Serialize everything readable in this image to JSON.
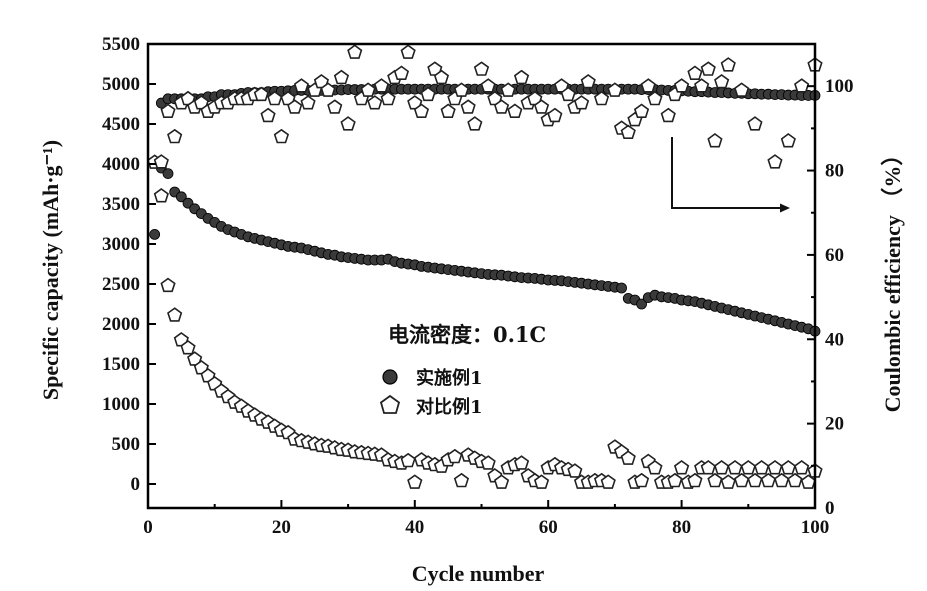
{
  "chart_data": {
    "type": "scatter",
    "xlabel": "Cycle number",
    "ylabel_left": "Specific capacity (mAh·g⁻¹)",
    "ylabel_right": "Coulombic efficiency （%）",
    "annotation": "电流密度：0.1C",
    "xlim": [
      0,
      100
    ],
    "ylim_left": [
      -300,
      5500
    ],
    "ylim_right": [
      0,
      110
    ],
    "x_ticks": [
      0,
      20,
      40,
      60,
      80,
      100
    ],
    "y_ticks_left": [
      0,
      500,
      1000,
      1500,
      2000,
      2500,
      3000,
      3500,
      4000,
      4500,
      5000,
      5500
    ],
    "y_ticks_right": [
      0,
      20,
      40,
      60,
      80,
      100
    ],
    "grid": false,
    "legend_position": "center",
    "series": [
      {
        "name": "实施例1",
        "marker": "filled-circle",
        "axis": "left",
        "color": "#3a3a3a",
        "capacity_x": [
          1,
          2,
          3,
          4,
          5,
          6,
          7,
          8,
          9,
          10,
          11,
          12,
          13,
          14,
          15,
          16,
          17,
          18,
          19,
          20,
          21,
          22,
          23,
          24,
          25,
          26,
          27,
          28,
          29,
          30,
          31,
          32,
          33,
          34,
          35,
          36,
          37,
          38,
          39,
          40,
          41,
          42,
          43,
          44,
          45,
          46,
          47,
          48,
          49,
          50,
          51,
          52,
          53,
          54,
          55,
          56,
          57,
          58,
          59,
          60,
          61,
          62,
          63,
          64,
          65,
          66,
          67,
          68,
          69,
          70,
          71,
          72,
          73,
          74,
          75,
          76,
          77,
          78,
          79,
          80,
          81,
          82,
          83,
          84,
          85,
          86,
          87,
          88,
          89,
          90,
          91,
          92,
          93,
          94,
          95,
          96,
          97,
          98,
          99,
          100
        ],
        "capacity_y": [
          3120,
          3950,
          3880,
          3650,
          3590,
          3510,
          3440,
          3380,
          3320,
          3270,
          3220,
          3180,
          3150,
          3120,
          3090,
          3070,
          3050,
          3030,
          3010,
          2990,
          2970,
          2960,
          2950,
          2930,
          2910,
          2890,
          2870,
          2860,
          2840,
          2830,
          2820,
          2810,
          2800,
          2800,
          2800,
          2810,
          2780,
          2760,
          2750,
          2740,
          2720,
          2710,
          2700,
          2690,
          2680,
          2670,
          2660,
          2650,
          2640,
          2630,
          2620,
          2615,
          2610,
          2600,
          2590,
          2580,
          2575,
          2570,
          2560,
          2550,
          2545,
          2540,
          2530,
          2520,
          2510,
          2500,
          2490,
          2480,
          2470,
          2460,
          2450,
          2320,
          2300,
          2250,
          2330,
          2360,
          2340,
          2330,
          2320,
          2300,
          2290,
          2280,
          2260,
          2240,
          2220,
          2200,
          2180,
          2160,
          2140,
          2120,
          2100,
          2080,
          2060,
          2040,
          2020,
          2000,
          1980,
          1960,
          1940,
          1910
        ],
        "efficiency_x": [
          2,
          3,
          4,
          5,
          6,
          7,
          8,
          9,
          10,
          11,
          12,
          13,
          14,
          15,
          16,
          17,
          18,
          19,
          20,
          21,
          22,
          23,
          24,
          25,
          26,
          27,
          28,
          29,
          30,
          31,
          32,
          33,
          34,
          35,
          36,
          37,
          38,
          39,
          40,
          41,
          42,
          43,
          44,
          45,
          46,
          47,
          48,
          49,
          50,
          51,
          52,
          53,
          54,
          55,
          56,
          57,
          58,
          59,
          60,
          61,
          62,
          63,
          64,
          65,
          66,
          67,
          68,
          69,
          70,
          71,
          72,
          73,
          74,
          75,
          76,
          77,
          78,
          79,
          80,
          81,
          82,
          83,
          84,
          85,
          86,
          87,
          88,
          89,
          90,
          91,
          92,
          93,
          94,
          95,
          96,
          97,
          98,
          99,
          100
        ],
        "efficiency_y": [
          96,
          97,
          97,
          97,
          96.5,
          97,
          97,
          97.5,
          97.5,
          98,
          98,
          98,
          98.3,
          98.5,
          98.5,
          98.5,
          98.7,
          98.8,
          98.8,
          98.9,
          99,
          99,
          99,
          99,
          99,
          99.1,
          99.1,
          99.1,
          99.2,
          99.2,
          99.2,
          99.3,
          99.3,
          99.3,
          99.3,
          99.3,
          99.3,
          99.3,
          99.3,
          99.3,
          99.3,
          99.3,
          99.3,
          99.3,
          99.3,
          99.3,
          99.3,
          99.3,
          99.3,
          99.3,
          99.3,
          99.3,
          99.3,
          99.3,
          99.3,
          99.3,
          99.3,
          99.3,
          99.3,
          99.3,
          99.3,
          99.3,
          99.3,
          99.3,
          99.3,
          99.3,
          99.3,
          99.3,
          99.3,
          99.3,
          99.3,
          99.3,
          99.2,
          99.2,
          99.2,
          99.1,
          99,
          99,
          98.9,
          98.8,
          98.7,
          98.7,
          98.6,
          98.5,
          98.5,
          98.4,
          98.3,
          98.3,
          98.2,
          98.2,
          98.1,
          98.1,
          98,
          98,
          97.9,
          97.9,
          97.8,
          97.8,
          97.8
        ]
      },
      {
        "name": "对比例1",
        "marker": "open-pentagon",
        "axis": "left",
        "color": "#3a3a3a",
        "capacity_x": [
          1,
          2,
          3,
          4,
          5,
          6,
          7,
          8,
          9,
          10,
          11,
          12,
          13,
          14,
          15,
          16,
          17,
          18,
          19,
          20,
          21,
          22,
          23,
          24,
          25,
          26,
          27,
          28,
          29,
          30,
          31,
          32,
          33,
          34,
          35,
          36,
          37,
          38,
          39,
          40,
          41,
          42,
          43,
          44,
          45,
          46,
          47,
          48,
          49,
          50,
          51,
          52,
          53,
          54,
          55,
          56,
          57,
          58,
          59,
          60,
          61,
          62,
          63,
          64,
          65,
          66,
          67,
          68,
          69,
          70,
          71,
          72,
          73,
          74,
          75,
          76,
          77,
          78,
          79,
          80,
          81,
          82,
          83,
          84,
          85,
          86,
          87,
          88,
          89,
          90,
          91,
          92,
          93,
          94,
          95,
          96,
          97,
          98,
          99,
          100
        ],
        "capacity_y": [
          4020,
          3600,
          2480,
          2110,
          1800,
          1700,
          1560,
          1450,
          1350,
          1250,
          1160,
          1090,
          1020,
          970,
          910,
          860,
          810,
          770,
          720,
          670,
          640,
          560,
          540,
          520,
          500,
          480,
          470,
          450,
          430,
          420,
          400,
          390,
          380,
          370,
          360,
          300,
          280,
          260,
          290,
          20,
          300,
          260,
          240,
          220,
          300,
          340,
          40,
          360,
          320,
          280,
          260,
          100,
          20,
          200,
          240,
          260,
          100,
          40,
          20,
          200,
          240,
          200,
          180,
          160,
          20,
          20,
          40,
          40,
          20,
          460,
          400,
          320,
          20,
          40,
          280,
          200,
          20,
          20,
          40,
          200,
          20,
          40,
          200,
          200,
          40,
          200,
          20,
          200,
          40,
          200,
          40,
          200,
          40,
          200,
          40,
          200,
          40,
          200,
          20,
          160
        ],
        "efficiency_x": [
          2,
          3,
          4,
          5,
          6,
          7,
          8,
          9,
          10,
          11,
          12,
          13,
          14,
          15,
          16,
          17,
          18,
          19,
          20,
          21,
          22,
          23,
          24,
          25,
          26,
          27,
          28,
          29,
          30,
          31,
          32,
          33,
          34,
          35,
          36,
          37,
          38,
          39,
          40,
          41,
          42,
          43,
          44,
          45,
          46,
          47,
          48,
          49,
          50,
          51,
          52,
          53,
          54,
          55,
          56,
          57,
          58,
          59,
          60,
          61,
          62,
          63,
          64,
          65,
          66,
          68,
          70,
          71,
          72,
          73,
          74,
          75,
          76,
          78,
          79,
          80,
          82,
          83,
          84,
          85,
          86,
          87,
          89,
          91,
          94,
          96,
          98,
          100
        ],
        "efficiency_y": [
          82,
          94,
          88,
          96,
          97,
          95,
          96,
          94,
          95,
          96,
          96,
          97,
          97,
          97,
          98,
          98,
          93,
          97,
          88,
          97,
          95,
          100,
          96,
          99,
          101,
          99,
          95,
          102,
          91,
          108,
          97,
          99,
          96,
          100,
          97,
          102,
          103,
          108,
          96,
          94,
          98,
          104,
          102,
          94,
          97,
          99,
          95,
          91,
          104,
          100,
          97,
          95,
          99,
          94,
          102,
          96,
          97,
          95,
          92,
          93,
          100,
          98,
          95,
          96,
          101,
          97,
          99,
          90,
          89,
          92,
          94,
          100,
          97,
          93,
          98,
          100,
          103,
          100,
          104,
          87,
          101,
          105,
          99,
          91,
          82,
          87,
          100,
          105
        ]
      }
    ]
  }
}
